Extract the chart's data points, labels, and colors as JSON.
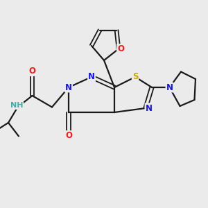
{
  "bg_color": "#ebebeb",
  "bond_color": "#1a1a1a",
  "atom_colors": {
    "N": "#1414ff",
    "O": "#ff1414",
    "S": "#c8a800",
    "H": "#44aaaa",
    "C": "#1a1a1a"
  },
  "figsize": [
    3.0,
    3.0
  ],
  "dpi": 100
}
